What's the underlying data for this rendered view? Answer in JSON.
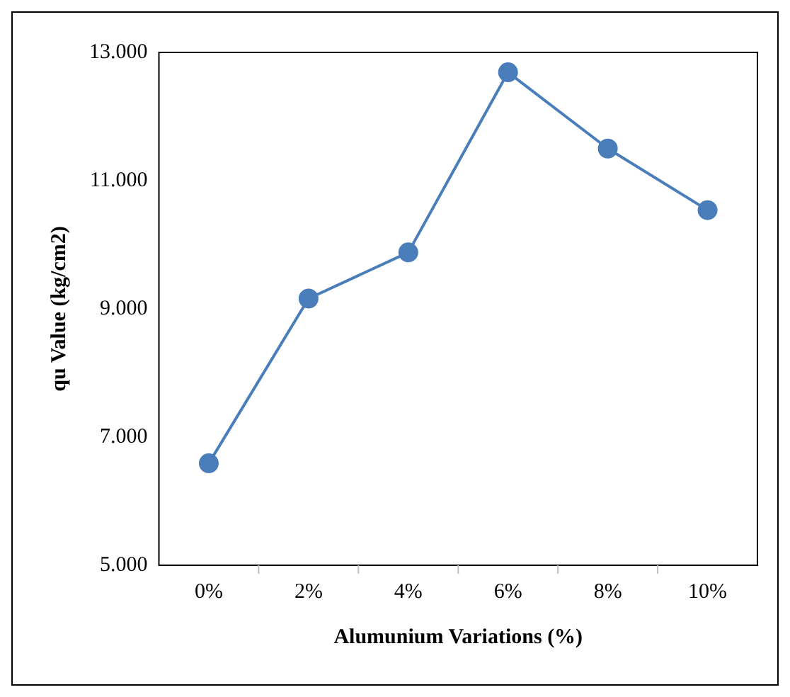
{
  "chart_data": {
    "type": "line",
    "xlabel": "Alumunium Variations (%)",
    "ylabel": "qu Value (kg/cm2)",
    "categories": [
      "0%",
      "2%",
      "4%",
      "6%",
      "8%",
      "10%"
    ],
    "series": [
      {
        "color": "#4a7ebb",
        "values": [
          6590,
          9160,
          9880,
          12690,
          11500,
          10540
        ]
      }
    ],
    "ylim": [
      5000,
      13000
    ],
    "yticks": [
      {
        "value": 5000,
        "label": "5.000"
      },
      {
        "value": 7000,
        "label": "7.000"
      },
      {
        "value": 9000,
        "label": "9.000"
      },
      {
        "value": 11000,
        "label": "11.000"
      },
      {
        "value": 13000,
        "label": "13.000"
      }
    ],
    "grid": false,
    "legend": false,
    "marker": "circle",
    "line_style": "solid"
  }
}
